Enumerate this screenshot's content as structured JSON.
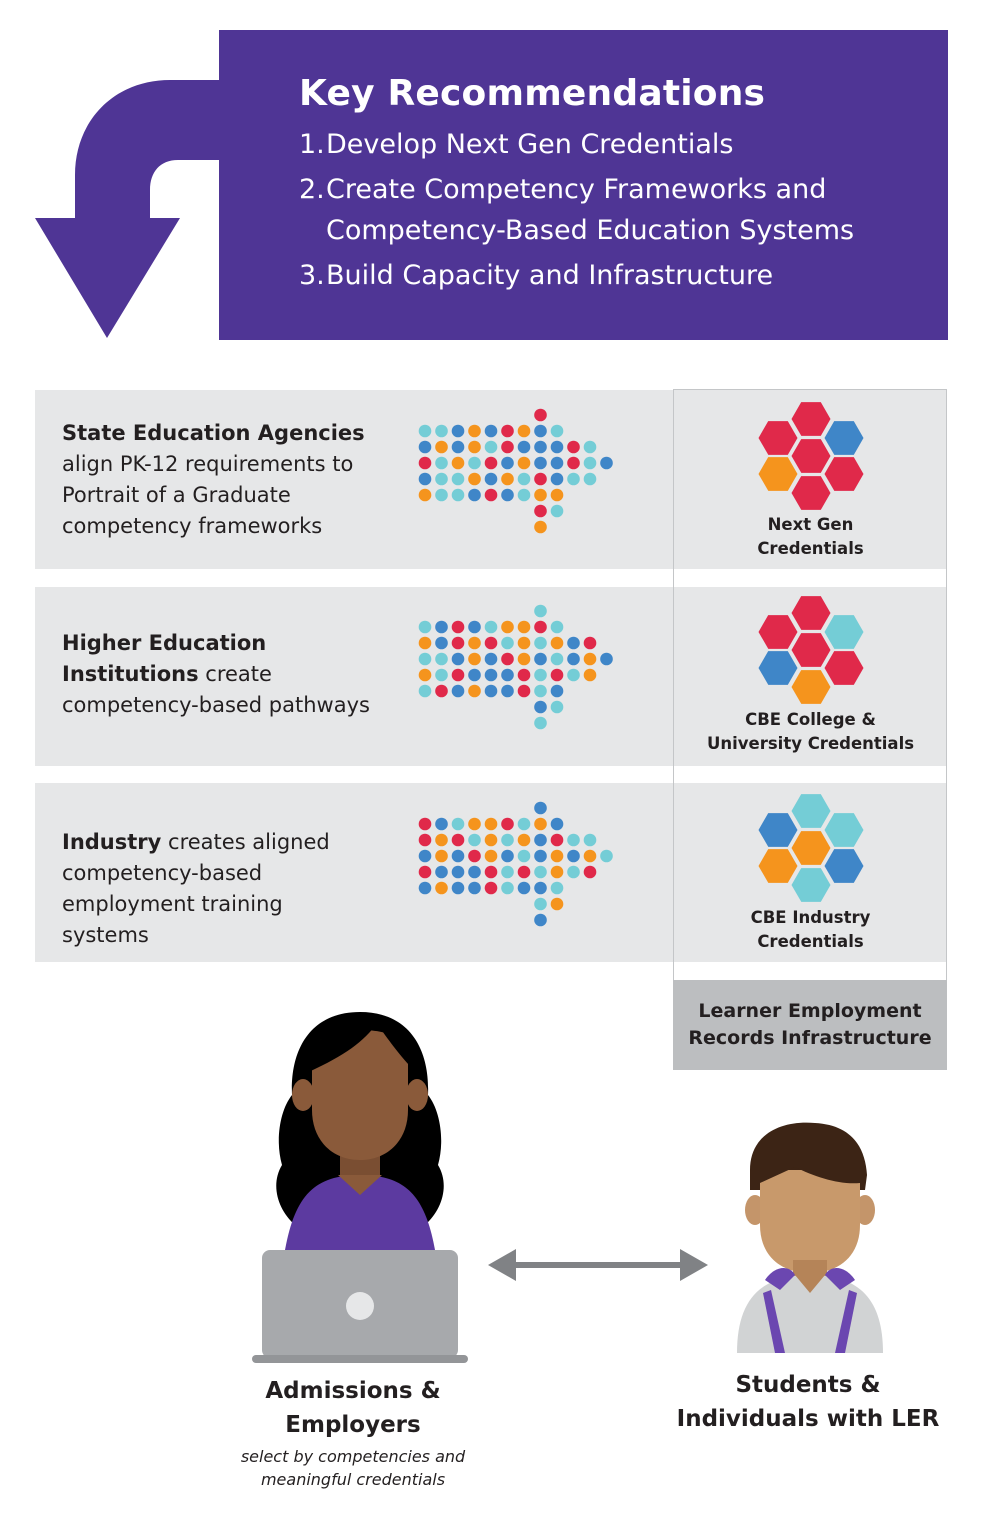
{
  "key_recommendations": {
    "title": "Key Recommendations",
    "items": [
      {
        "num": "1.",
        "text": "Develop Next Gen Credentials"
      },
      {
        "num": "2.",
        "text": "Create Competency Frameworks and\nCompetency-Based Education Systems"
      },
      {
        "num": "3.",
        "text": "Build Capacity and Infrastructure"
      }
    ]
  },
  "rows": [
    {
      "bold": "State Education Agencies",
      "rest": "align PK-12 requirements to Portrait of a Graduate competency frameworks",
      "credential": "Next Gen\nCredentials"
    },
    {
      "bold": "Higher Education Institutions",
      "rest": "create competency-based pathways",
      "credential": "CBE College &\nUniversity Credentials"
    },
    {
      "bold": "Industry",
      "rest": "creates aligned competency-based employment training systems",
      "credential": "CBE Industry\nCredentials"
    }
  ],
  "ler_box": "Learner Employment\nRecords Infrastructure",
  "people": {
    "left_label": "Admissions &\nEmployers",
    "left_sublabel": "select by competencies and\nmeaningful credentials",
    "right_label": "Students &\nIndividuals with LER"
  },
  "colors": {
    "purple": "#4f3595",
    "red": "#e0294a",
    "blue": "#3f86c8",
    "orange": "#f5941d",
    "teal": "#74cdd6",
    "band_gray": "#e6e7e8",
    "ler_gray": "#bcbec0"
  }
}
